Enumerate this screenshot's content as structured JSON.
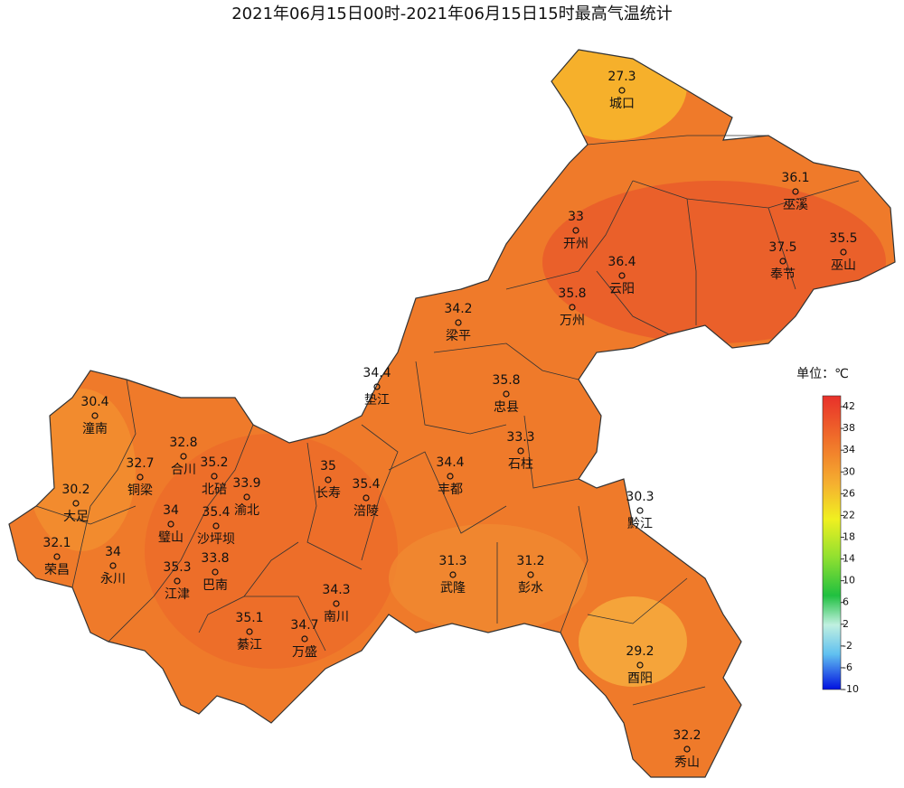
{
  "title": "2021年06月15日00时-2021年06月15日15时最高气温统计",
  "stations": [
    {
      "name": "城口",
      "value": 27.3
    },
    {
      "name": "巫溪",
      "value": 36.1
    },
    {
      "name": "开州",
      "value": 33
    },
    {
      "name": "巫山",
      "value": 35.5
    },
    {
      "name": "云阳",
      "value": 36.4
    },
    {
      "name": "奉节",
      "value": 37.5
    },
    {
      "name": "万州",
      "value": 35.8
    },
    {
      "name": "梁平",
      "value": 34.2
    },
    {
      "name": "垫江",
      "value": 34.4
    },
    {
      "name": "忠县",
      "value": 35.8
    },
    {
      "name": "潼南",
      "value": 30.4
    },
    {
      "name": "石柱",
      "value": 33.3
    },
    {
      "name": "合川",
      "value": 32.8
    },
    {
      "name": "铜梁",
      "value": 32.7
    },
    {
      "name": "北碚",
      "value": 35.2
    },
    {
      "name": "渝北",
      "value": 33.9
    },
    {
      "name": "长寿",
      "value": 35
    },
    {
      "name": "丰都",
      "value": 34.4
    },
    {
      "name": "涪陵",
      "value": 35.4
    },
    {
      "name": "大足",
      "value": 30.2
    },
    {
      "name": "璧山",
      "value": 34
    },
    {
      "name": "沙坪坝",
      "value": 35.4
    },
    {
      "name": "荣昌",
      "value": 32.1
    },
    {
      "name": "永川",
      "value": 34
    },
    {
      "name": "江津",
      "value": 35.3
    },
    {
      "name": "巴南",
      "value": 33.8
    },
    {
      "name": "黔江",
      "value": 30.3
    },
    {
      "name": "武隆",
      "value": 31.3
    },
    {
      "name": "彭水",
      "value": 31.2
    },
    {
      "name": "南川",
      "value": 34.3
    },
    {
      "name": "綦江",
      "value": 35.1
    },
    {
      "name": "万盛",
      "value": 34.7
    },
    {
      "name": "酉阳",
      "value": 29.2
    },
    {
      "name": "秀山",
      "value": 32.2
    }
  ],
  "legend": {
    "title": "单位：℃",
    "range": [
      -10,
      44
    ],
    "ticks": [
      42,
      38,
      34,
      30,
      26,
      22,
      18,
      14,
      10,
      6,
      2,
      -2,
      -6,
      -10
    ]
  }
}
